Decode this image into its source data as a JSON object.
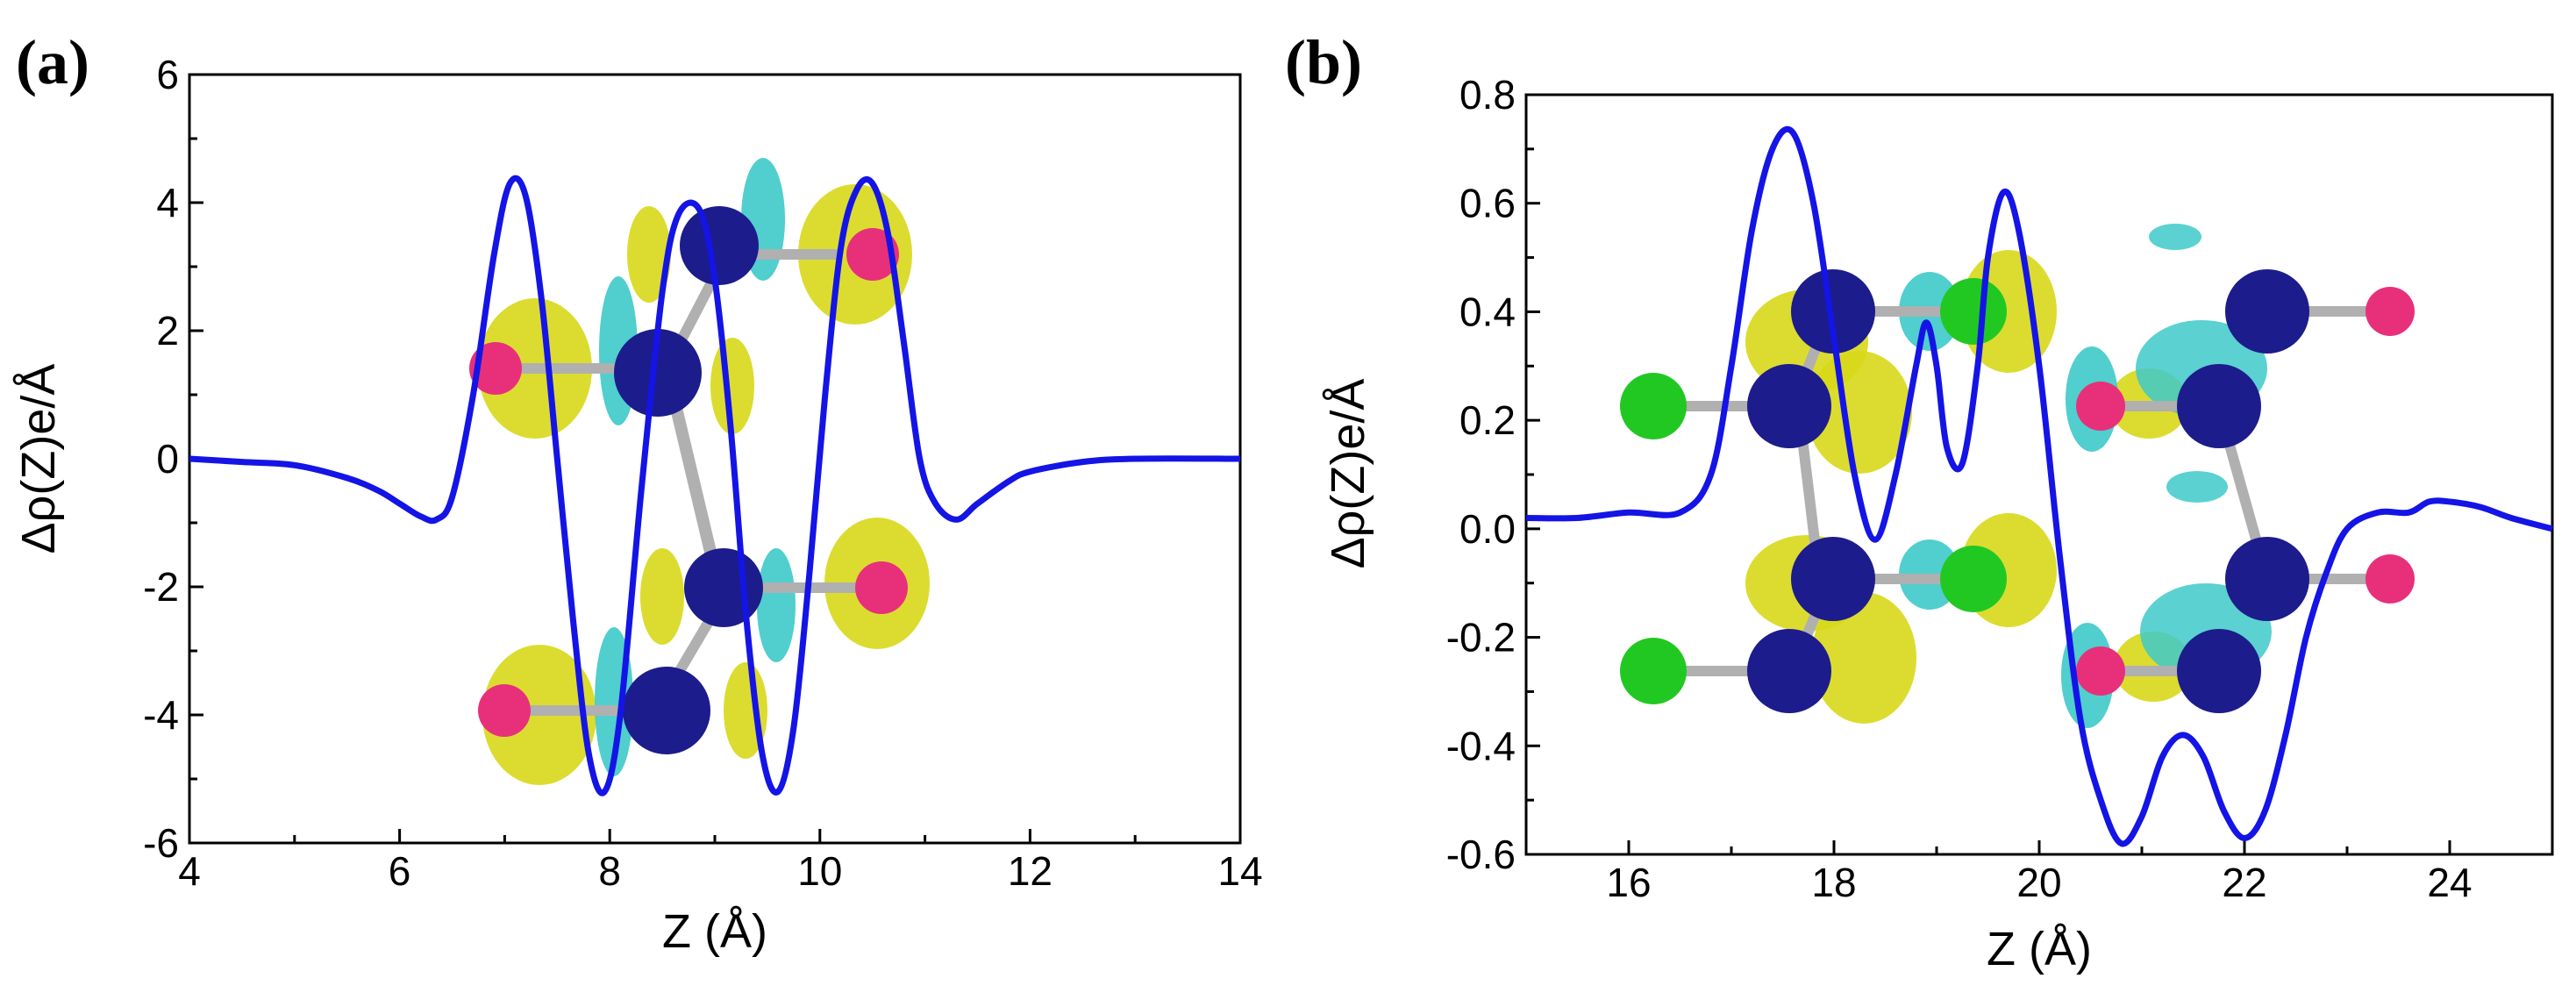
{
  "chart_data": [
    {
      "panel": "(a)",
      "type": "line",
      "xlabel": "Z (Å)",
      "ylabel": "Δρ(Z)e/Å",
      "xlim": [
        4,
        14
      ],
      "ylim": [
        -6,
        6
      ],
      "xticks": [
        4,
        6,
        8,
        10,
        12,
        14
      ],
      "yticks": [
        -6,
        -4,
        -2,
        0,
        2,
        4,
        6
      ],
      "line_color": "#1414e6",
      "series": [
        {
          "name": "Δρ(Z)",
          "x": [
            4.0,
            4.5,
            5.0,
            5.5,
            5.8,
            6.0,
            6.2,
            6.35,
            6.5,
            6.7,
            6.9,
            7.05,
            7.2,
            7.35,
            7.5,
            7.65,
            7.8,
            7.95,
            8.1,
            8.3,
            8.5,
            8.65,
            8.85,
            9.0,
            9.15,
            9.3,
            9.45,
            9.6,
            9.75,
            9.9,
            10.05,
            10.2,
            10.35,
            10.5,
            10.65,
            10.8,
            10.95,
            11.1,
            11.3,
            11.5,
            11.8,
            12.0,
            12.5,
            13.0,
            14.0
          ],
          "y": [
            0.0,
            -0.05,
            -0.1,
            -0.3,
            -0.5,
            -0.7,
            -0.9,
            -0.95,
            -0.6,
            1.0,
            3.2,
            4.3,
            4.1,
            2.5,
            0.0,
            -2.5,
            -4.6,
            -5.2,
            -4.0,
            -0.5,
            2.6,
            3.8,
            3.9,
            2.8,
            0.5,
            -2.5,
            -4.6,
            -5.2,
            -4.2,
            -1.8,
            1.0,
            3.3,
            4.2,
            4.3,
            3.5,
            1.8,
            0.0,
            -0.7,
            -0.95,
            -0.7,
            -0.35,
            -0.2,
            -0.05,
            0.0,
            0.0
          ]
        }
      ]
    },
    {
      "panel": "(b)",
      "type": "line",
      "xlabel": "Z (Å)",
      "ylabel": "Δρ(Z)e/Å",
      "xlim": [
        15,
        25
      ],
      "ylim": [
        -0.6,
        0.8
      ],
      "xticks": [
        16,
        18,
        20,
        22,
        24
      ],
      "yticks": [
        -0.6,
        -0.4,
        -0.2,
        0.0,
        0.2,
        0.4,
        0.6,
        0.8
      ],
      "line_color": "#1414e6",
      "series": [
        {
          "name": "Δρ(Z)",
          "x": [
            15.0,
            15.5,
            16.0,
            16.5,
            16.8,
            17.0,
            17.2,
            17.4,
            17.6,
            17.8,
            18.0,
            18.2,
            18.4,
            18.6,
            18.8,
            18.9,
            19.0,
            19.1,
            19.25,
            19.4,
            19.5,
            19.65,
            19.8,
            20.0,
            20.2,
            20.4,
            20.6,
            20.8,
            21.0,
            21.2,
            21.4,
            21.6,
            21.8,
            22.0,
            22.2,
            22.4,
            22.6,
            22.8,
            23.0,
            23.3,
            23.6,
            23.8,
            24.0,
            24.3,
            24.6,
            25.0
          ],
          "y": [
            0.02,
            0.02,
            0.03,
            0.03,
            0.1,
            0.3,
            0.55,
            0.7,
            0.73,
            0.6,
            0.35,
            0.1,
            -0.02,
            0.1,
            0.3,
            0.38,
            0.3,
            0.15,
            0.12,
            0.3,
            0.5,
            0.62,
            0.55,
            0.3,
            -0.05,
            -0.35,
            -0.5,
            -0.58,
            -0.53,
            -0.42,
            -0.38,
            -0.42,
            -0.52,
            -0.57,
            -0.52,
            -0.38,
            -0.2,
            -0.08,
            0.0,
            0.03,
            0.03,
            0.05,
            0.05,
            0.04,
            0.02,
            0.0
          ]
        }
      ]
    }
  ]
}
